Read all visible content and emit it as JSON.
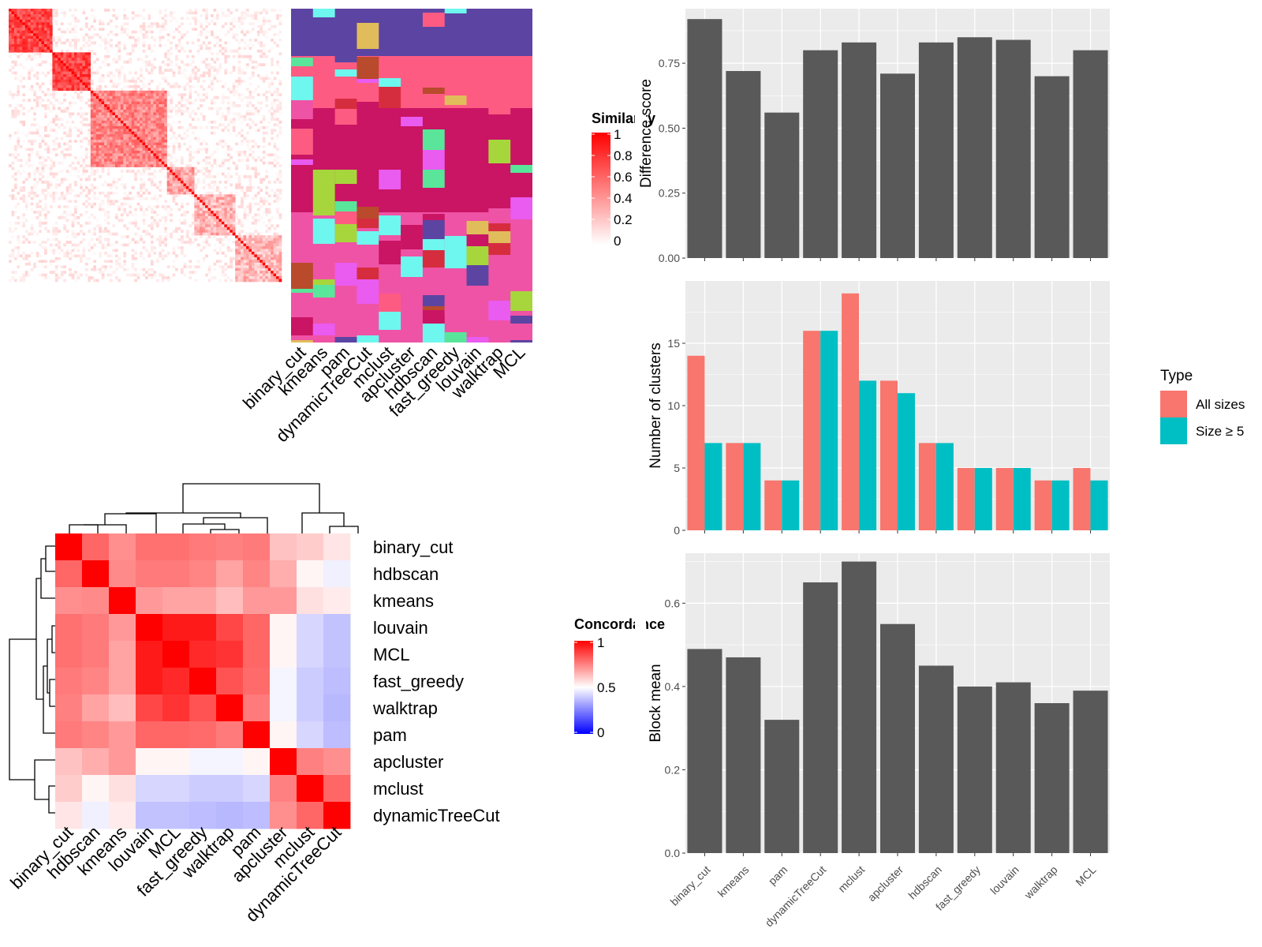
{
  "colors": {
    "panel_bg": "#ebebeb",
    "grid": "#ffffff",
    "bar": "#595959",
    "all_sizes": "#f8766d",
    "size_ge5": "#00bfc4",
    "similarity_high": "#ff0000",
    "similarity_low": "#ffffff",
    "concordance_high": "#ff0000",
    "concordance_mid": "#ffffff",
    "concordance_low": "#0000ff"
  },
  "methods_top": [
    "binary_cut",
    "kmeans",
    "pam",
    "dynamicTreeCut",
    "mclust",
    "apcluster",
    "hdbscan",
    "fast_greedy",
    "louvain",
    "walktrap",
    "MCL"
  ],
  "similarity_legend": {
    "title": "Similarity",
    "ticks": [
      "1",
      "0.8",
      "0.6",
      "0.4",
      "0.2",
      "0"
    ]
  },
  "concordance": {
    "legend_title": "Concordance",
    "legend_ticks": [
      "1",
      "0.5",
      "0"
    ],
    "row_labels": [
      "binary_cut",
      "hdbscan",
      "kmeans",
      "louvain",
      "MCL",
      "fast_greedy",
      "walktrap",
      "pam",
      "apcluster",
      "mclust",
      "dynamicTreeCut"
    ],
    "col_labels": [
      "binary_cut",
      "hdbscan",
      "kmeans",
      "louvain",
      "MCL",
      "fast_greedy",
      "walktrap",
      "pam",
      "apcluster",
      "mclust",
      "dynamicTreeCut"
    ],
    "matrix": [
      [
        1.0,
        0.8,
        0.72,
        0.78,
        0.78,
        0.76,
        0.75,
        0.76,
        0.62,
        0.6,
        0.55
      ],
      [
        0.8,
        1.0,
        0.73,
        0.76,
        0.76,
        0.74,
        0.68,
        0.74,
        0.66,
        0.52,
        0.47
      ],
      [
        0.72,
        0.73,
        1.0,
        0.7,
        0.68,
        0.68,
        0.63,
        0.7,
        0.7,
        0.56,
        0.54
      ],
      [
        0.78,
        0.76,
        0.7,
        1.0,
        0.95,
        0.95,
        0.86,
        0.8,
        0.52,
        0.42,
        0.38
      ],
      [
        0.78,
        0.76,
        0.68,
        0.95,
        1.0,
        0.92,
        0.9,
        0.8,
        0.52,
        0.42,
        0.38
      ],
      [
        0.76,
        0.74,
        0.68,
        0.95,
        0.92,
        1.0,
        0.84,
        0.79,
        0.48,
        0.4,
        0.37
      ],
      [
        0.75,
        0.68,
        0.63,
        0.86,
        0.9,
        0.84,
        1.0,
        0.76,
        0.48,
        0.4,
        0.36
      ],
      [
        0.76,
        0.74,
        0.7,
        0.8,
        0.8,
        0.79,
        0.76,
        1.0,
        0.52,
        0.42,
        0.37
      ],
      [
        0.62,
        0.66,
        0.7,
        0.52,
        0.52,
        0.48,
        0.48,
        0.52,
        1.0,
        0.75,
        0.72
      ],
      [
        0.6,
        0.52,
        0.56,
        0.42,
        0.42,
        0.4,
        0.4,
        0.42,
        0.75,
        1.0,
        0.8
      ],
      [
        0.55,
        0.47,
        0.54,
        0.38,
        0.38,
        0.37,
        0.36,
        0.37,
        0.72,
        0.8,
        1.0
      ]
    ]
  },
  "chart_data": [
    {
      "type": "bar",
      "categories": [
        "binary_cut",
        "kmeans",
        "pam",
        "dynamicTreeCut",
        "mclust",
        "apcluster",
        "hdbscan",
        "fast_greedy",
        "louvain",
        "walktrap",
        "MCL"
      ],
      "values": [
        0.92,
        0.72,
        0.56,
        0.8,
        0.83,
        0.71,
        0.83,
        0.85,
        0.84,
        0.7,
        0.8
      ],
      "xlabel": "",
      "ylabel": "Difference score",
      "ylim": [
        0,
        0.96
      ],
      "yticks": [
        "0.00",
        "0.25",
        "0.50",
        "0.75"
      ],
      "grid": true
    },
    {
      "type": "bar",
      "categories": [
        "binary_cut",
        "kmeans",
        "pam",
        "dynamicTreeCut",
        "mclust",
        "apcluster",
        "hdbscan",
        "fast_greedy",
        "louvain",
        "walktrap",
        "MCL"
      ],
      "series": [
        {
          "name": "All sizes",
          "values": [
            14,
            7,
            4,
            16,
            19,
            12,
            7,
            5,
            5,
            4,
            5
          ]
        },
        {
          "name": "Size ≥ 5",
          "values": [
            7,
            7,
            4,
            16,
            12,
            11,
            7,
            5,
            5,
            4,
            4
          ]
        }
      ],
      "xlabel": "",
      "ylabel": "Number of clusters",
      "ylim": [
        0,
        20
      ],
      "yticks": [
        "0",
        "5",
        "10",
        "15"
      ],
      "legend": {
        "title": "Type",
        "position": "right"
      },
      "grid": true
    },
    {
      "type": "bar",
      "categories": [
        "binary_cut",
        "kmeans",
        "pam",
        "dynamicTreeCut",
        "mclust",
        "apcluster",
        "hdbscan",
        "fast_greedy",
        "louvain",
        "walktrap",
        "MCL"
      ],
      "values": [
        0.49,
        0.47,
        0.32,
        0.65,
        0.7,
        0.55,
        0.45,
        0.4,
        0.41,
        0.36,
        0.39
      ],
      "xlabel": "",
      "ylabel": "Block mean",
      "ylim": [
        0,
        0.72
      ],
      "yticks": [
        "0.0",
        "0.2",
        "0.4",
        "0.6"
      ],
      "grid": true
    }
  ]
}
